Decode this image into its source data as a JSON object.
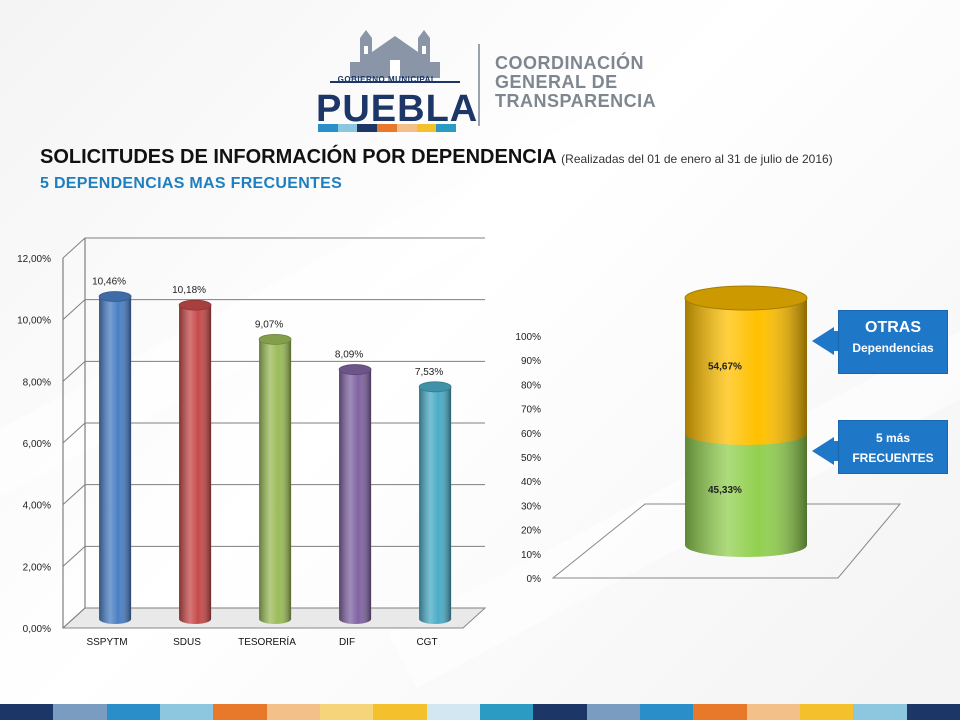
{
  "header": {
    "logo_top": "GOBIERNO MUNICIPAL",
    "logo_name": "PUEBLA",
    "org_lines": [
      "COORDINACIÓN",
      "GENERAL DE",
      "TRANSPARENCIA"
    ]
  },
  "title": {
    "main": "SOLICITUDES DE INFORMACIÓN POR DEPENDENCIA",
    "period": "(Realizadas del 01 de enero al 31 de julio de 2016)",
    "subtitle": "5 DEPENDENCIAS MAS FRECUENTES"
  },
  "colors": {
    "accent_blue": "#1f77c8",
    "subtitle_blue": "#1e7fc0",
    "logo_navy": "#1b3667",
    "stripe": [
      "#1b3667",
      "#7a9cc0",
      "#2a8fc9",
      "#8cc6df",
      "#e9792a",
      "#f4c08a",
      "#f6d57a",
      "#f4c02b",
      "#d2e7f1",
      "#2b9bc4",
      "#1b3667",
      "#7a9cc0",
      "#2a8fc9",
      "#e9792a",
      "#f4c08a",
      "#f4c02b",
      "#8cc6df",
      "#1b3667"
    ]
  },
  "chart_data": [
    {
      "type": "bar",
      "categories": [
        "SSPYTM",
        "SDUS",
        "TESORERÍA",
        "DIF",
        "CGT"
      ],
      "values": [
        10.46,
        10.18,
        9.07,
        8.09,
        7.53
      ],
      "data_labels": [
        "10,46%",
        "10,18%",
        "9,07%",
        "8,09%",
        "7,53%"
      ],
      "bar_colors": [
        "#4a7fc4",
        "#c64a4a",
        "#9bbb59",
        "#8064a2",
        "#4bacc6"
      ],
      "ylim": [
        0,
        12
      ],
      "ytick_labels": [
        "0,00%",
        "2,00%",
        "4,00%",
        "6,00%",
        "8,00%",
        "10,00%",
        "12,00%"
      ],
      "grid": true,
      "title": "",
      "xlabel": "",
      "ylabel": ""
    },
    {
      "type": "bar",
      "stacked": true,
      "categories": [
        ""
      ],
      "series": [
        {
          "values": [
            45.33
          ],
          "label": "45,33%",
          "color": "#92d050"
        },
        {
          "values": [
            54.67
          ],
          "label": "54,67%",
          "color": "#ffc000"
        }
      ],
      "ylim": [
        0,
        100
      ],
      "ytick_labels": [
        "0%",
        "10%",
        "20%",
        "30%",
        "40%",
        "50%",
        "60%",
        "70%",
        "80%",
        "90%",
        "100%"
      ],
      "callouts": [
        {
          "title": "OTRAS",
          "text": "Dependencias"
        },
        {
          "title": "5 más",
          "text": "FRECUENTES"
        }
      ]
    }
  ]
}
